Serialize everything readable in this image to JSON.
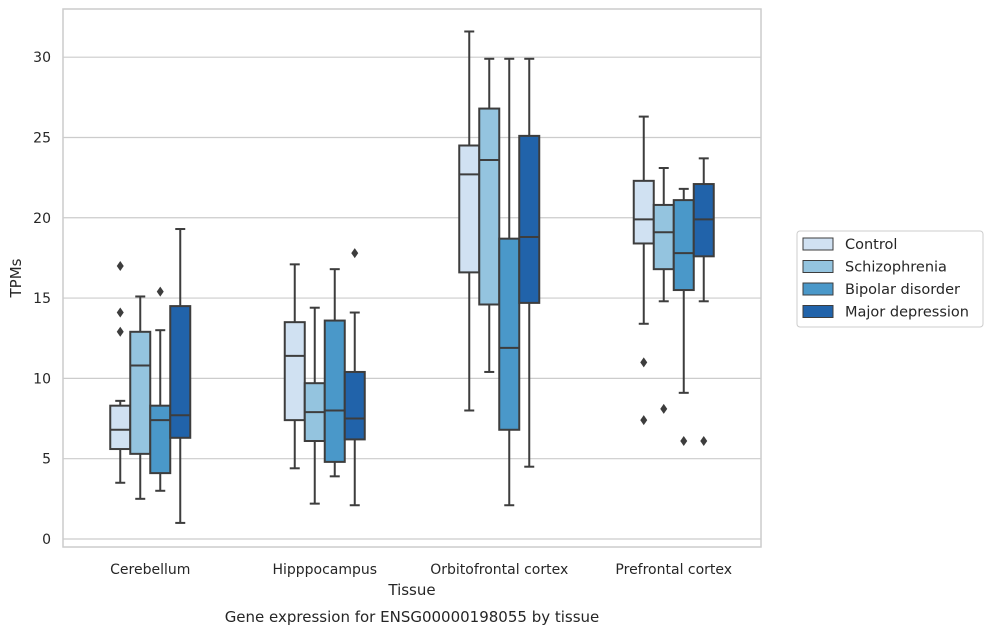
{
  "chart_data": {
    "type": "box",
    "xlabel": "Tissue",
    "ylabel": "TPMs",
    "caption": "Gene expression for ENSG00000198055 by tissue",
    "ylim": [
      -0.5,
      33
    ],
    "yticks": [
      0,
      5,
      10,
      15,
      20,
      25,
      30
    ],
    "grid": "horizontal",
    "legend_position": "right",
    "categories": [
      "Cerebellum",
      "Hipppocampus",
      "Orbitofrontal cortex",
      "Prefrontal cortex"
    ],
    "series": [
      {
        "name": "Control",
        "color": "#d0e1f2",
        "boxes": [
          {
            "whisker_low": 3.5,
            "q1": 5.6,
            "median": 6.8,
            "q3": 8.3,
            "whisker_high": 8.6,
            "outliers": [
              12.9,
              14.1,
              17.0
            ]
          },
          {
            "whisker_low": 4.4,
            "q1": 7.4,
            "median": 11.4,
            "q3": 13.5,
            "whisker_high": 17.1,
            "outliers": []
          },
          {
            "whisker_low": 8.0,
            "q1": 16.6,
            "median": 22.7,
            "q3": 24.5,
            "whisker_high": 31.6,
            "outliers": []
          },
          {
            "whisker_low": 13.4,
            "q1": 18.4,
            "median": 19.9,
            "q3": 22.3,
            "whisker_high": 26.3,
            "outliers": [
              7.4,
              11.0
            ]
          }
        ]
      },
      {
        "name": "Schizophrenia",
        "color": "#94c4df",
        "boxes": [
          {
            "whisker_low": 2.5,
            "q1": 5.3,
            "median": 10.8,
            "q3": 12.9,
            "whisker_high": 15.1,
            "outliers": []
          },
          {
            "whisker_low": 2.2,
            "q1": 6.1,
            "median": 7.9,
            "q3": 9.7,
            "whisker_high": 14.4,
            "outliers": []
          },
          {
            "whisker_low": 10.4,
            "q1": 14.6,
            "median": 23.6,
            "q3": 26.8,
            "whisker_high": 29.9,
            "outliers": []
          },
          {
            "whisker_low": 14.8,
            "q1": 16.8,
            "median": 19.1,
            "q3": 20.8,
            "whisker_high": 23.1,
            "outliers": [
              8.1
            ]
          }
        ]
      },
      {
        "name": "Bipolar disorder",
        "color": "#4a98c9",
        "boxes": [
          {
            "whisker_low": 3.0,
            "q1": 4.1,
            "median": 7.4,
            "q3": 8.3,
            "whisker_high": 13.0,
            "outliers": [
              15.4
            ]
          },
          {
            "whisker_low": 3.9,
            "q1": 4.8,
            "median": 8.0,
            "q3": 13.6,
            "whisker_high": 16.8,
            "outliers": []
          },
          {
            "whisker_low": 2.1,
            "q1": 6.8,
            "median": 11.9,
            "q3": 18.7,
            "whisker_high": 29.9,
            "outliers": []
          },
          {
            "whisker_low": 9.1,
            "q1": 15.5,
            "median": 17.8,
            "q3": 21.1,
            "whisker_high": 21.8,
            "outliers": [
              6.1
            ]
          }
        ]
      },
      {
        "name": "Major depression",
        "color": "#2163aa",
        "boxes": [
          {
            "whisker_low": 1.0,
            "q1": 6.3,
            "median": 7.7,
            "q3": 14.5,
            "whisker_high": 19.3,
            "outliers": []
          },
          {
            "whisker_low": 2.1,
            "q1": 6.2,
            "median": 7.5,
            "q3": 10.4,
            "whisker_high": 14.1,
            "outliers": [
              17.8
            ]
          },
          {
            "whisker_low": 4.5,
            "q1": 14.7,
            "median": 18.8,
            "q3": 25.1,
            "whisker_high": 29.9,
            "outliers": []
          },
          {
            "whisker_low": 14.8,
            "q1": 17.6,
            "median": 19.9,
            "q3": 22.1,
            "whisker_high": 23.7,
            "outliers": [
              6.1
            ]
          }
        ]
      }
    ]
  }
}
